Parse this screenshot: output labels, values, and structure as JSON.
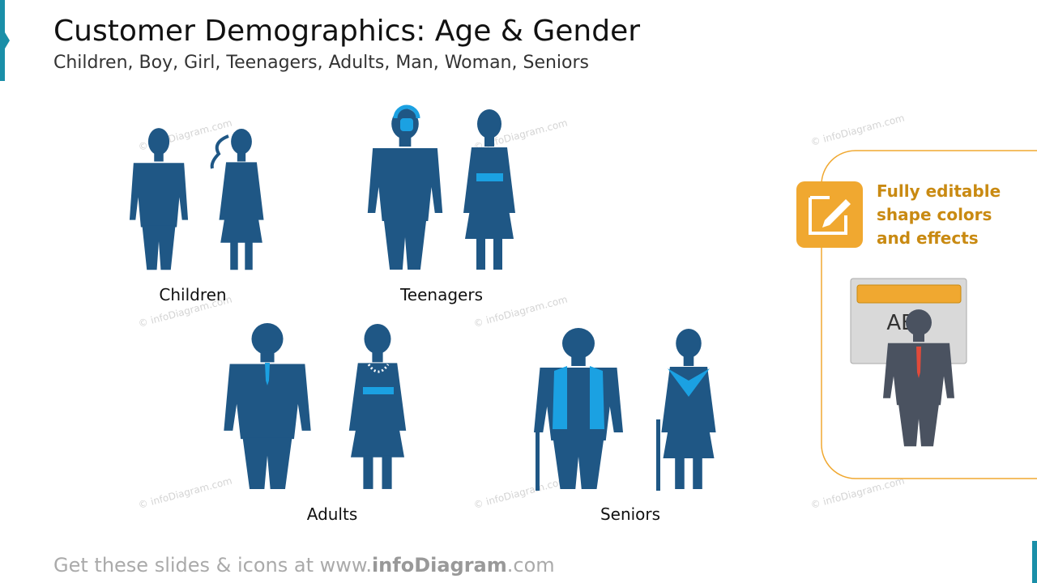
{
  "header": {
    "title": "Customer Demographics: Age & Gender",
    "subtitle": "Children, Boy, Girl, Teenagers, Adults, Man, Woman, Seniors"
  },
  "groups": [
    {
      "label": "Children"
    },
    {
      "label": "Teenagers"
    },
    {
      "label": "Adults"
    },
    {
      "label": "Seniors"
    }
  ],
  "callout": {
    "lines": [
      "Fully editable",
      "shape colors",
      "and effects"
    ],
    "sample_text": "ABC"
  },
  "watermark": "© infoDiagram.com",
  "footer": {
    "prefix": "Get these slides & icons at www.",
    "brand": "infoDiagram",
    "suffix": ".com"
  }
}
